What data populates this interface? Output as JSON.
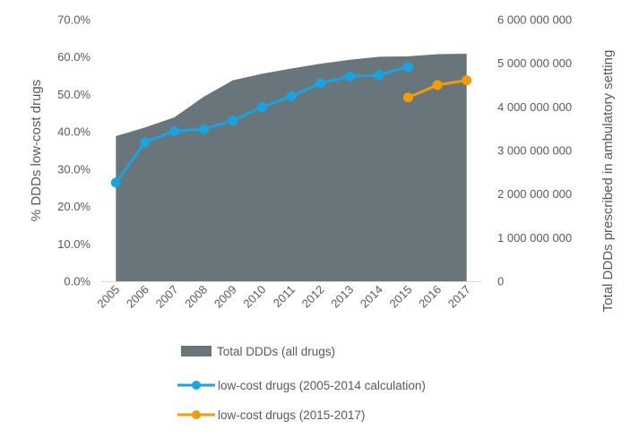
{
  "chart_data": {
    "type": "area+line",
    "categories": [
      "2005",
      "2006",
      "2007",
      "2008",
      "2009",
      "2010",
      "2011",
      "2012",
      "2013",
      "2014",
      "2015",
      "2016",
      "2017"
    ],
    "area_series": {
      "name": "Total DDDs (all drugs)",
      "axis": "right",
      "color": "#68757b",
      "values": [
        3330000000,
        3530000000,
        3760000000,
        4230000000,
        4610000000,
        4760000000,
        4880000000,
        4990000000,
        5080000000,
        5150000000,
        5160000000,
        5210000000,
        5220000000
      ]
    },
    "line_series": [
      {
        "name": "low-cost drugs (2005-2014 calculation)",
        "axis": "left",
        "color": "#1aa3e0",
        "start_index": 0,
        "values": [
          26.4,
          37.2,
          40.2,
          40.7,
          43.0,
          46.6,
          49.5,
          53.0,
          54.8,
          55.2,
          57.4
        ]
      },
      {
        "name": "low-cost drugs (2015-2017)",
        "axis": "left",
        "color": "#f29b0c",
        "start_index": 10,
        "values": [
          49.2,
          52.5,
          53.8
        ]
      }
    ],
    "y_left": {
      "label": "% DDDs low-cost drugs",
      "min": 0,
      "max": 70,
      "ticks": [
        "0.0%",
        "10.0%",
        "20.0%",
        "30.0%",
        "40.0%",
        "50.0%",
        "60.0%",
        "70.0%"
      ]
    },
    "y_right": {
      "label": "Total DDDs prescribed in ambulatory setting",
      "min": 0,
      "max": 6000000000,
      "ticks": [
        "0",
        "1 000 000 000",
        "2 000 000 000",
        "3 000 000 000",
        "4 000 000 000",
        "5 000 000 000",
        "6 000 000 000"
      ]
    },
    "legend_position": "bottom"
  }
}
